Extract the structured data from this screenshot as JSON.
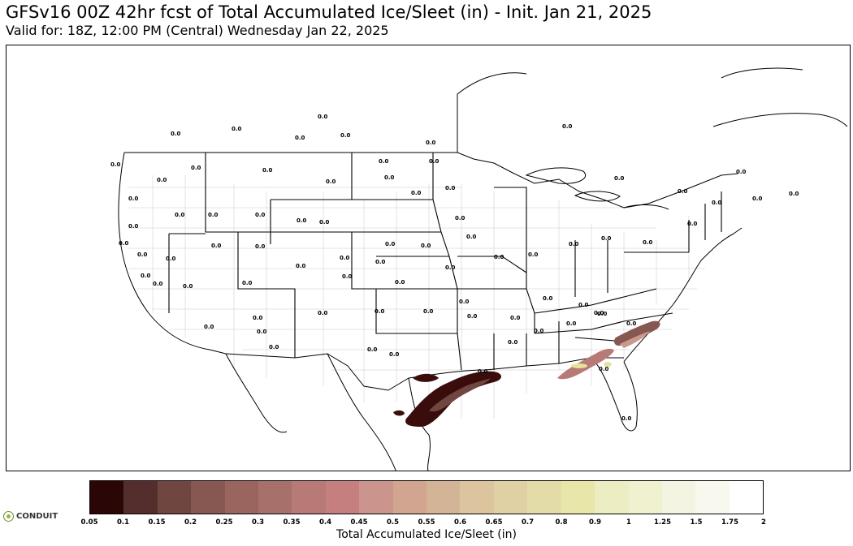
{
  "header": {
    "title": "GFSv16 00Z 42hr fcst of Total Accumulated Ice/Sleet (in) - Init. Jan 21, 2025",
    "subtitle": "Valid for: 18Z, 12:00 PM (Central) Wednesday Jan 22, 2025"
  },
  "map": {
    "point_value_label": "0.0",
    "colors": {
      "ice_dark": "#2a0606",
      "ice_mid": "#6e3e3a",
      "ice_light": "#c99a8c",
      "ice_highlight": "#e6e39a",
      "boundary": "#000000",
      "county": "#b5b5b5"
    }
  },
  "colorbar": {
    "label": "Total Accumulated Ice/Sleet (in)",
    "ticks": [
      "0.05",
      "0.1",
      "0.15",
      "0.2",
      "0.25",
      "0.3",
      "0.35",
      "0.4",
      "0.45",
      "0.5",
      "0.55",
      "0.6",
      "0.65",
      "0.7",
      "0.8",
      "0.9",
      "1",
      "1.25",
      "1.5",
      "1.75",
      "2"
    ],
    "colors": [
      "#2a0606",
      "#532e2d",
      "#704641",
      "#875752",
      "#9a645f",
      "#a8706b",
      "#b87a76",
      "#c57f7e",
      "#cb948c",
      "#d1a58f",
      "#d4b496",
      "#dcc49f",
      "#e0d1a5",
      "#e3dca8",
      "#e8e6a9",
      "#ecedc2",
      "#eff1cf",
      "#f3f4e2",
      "#f8f8ee",
      "#ffffff"
    ]
  },
  "logo": {
    "text": "CONDUIT"
  }
}
